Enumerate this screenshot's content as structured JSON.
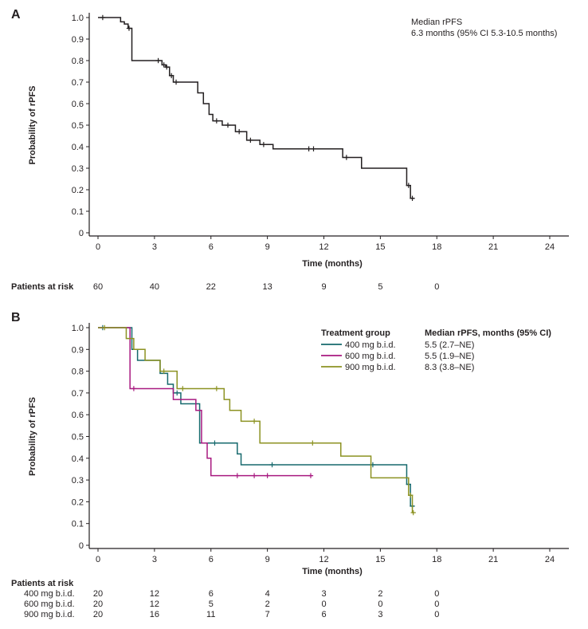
{
  "chart_data": [
    {
      "panel_label": "A",
      "type": "line",
      "subtype": "kaplan_meier_step",
      "xlabel": "Time (months)",
      "ylabel": "Probability of rPFS",
      "xlim": [
        0,
        24
      ],
      "ylim": [
        0,
        1
      ],
      "xticks": [
        0,
        3,
        6,
        9,
        12,
        15,
        18,
        21,
        24
      ],
      "yticks": [
        "1.0",
        "0.9",
        "0.8",
        "0.7",
        "0.6",
        "0.5",
        "0.4",
        "0.3",
        "0.2",
        "0.1",
        "0"
      ],
      "grid": false,
      "annotation": {
        "lines": [
          "Median rPFS",
          "6.3 months (95% CI 5.3-10.5 months)"
        ]
      },
      "series": [
        {
          "name": "All patients",
          "color": "#231f20",
          "steps": [
            [
              0,
              1.0
            ],
            [
              1.2,
              0.98
            ],
            [
              1.4,
              0.97
            ],
            [
              1.6,
              0.95
            ],
            [
              1.8,
              0.8
            ],
            [
              3.4,
              0.78
            ],
            [
              3.6,
              0.77
            ],
            [
              3.8,
              0.73
            ],
            [
              4.0,
              0.7
            ],
            [
              5.3,
              0.65
            ],
            [
              5.6,
              0.6
            ],
            [
              5.9,
              0.55
            ],
            [
              6.1,
              0.52
            ],
            [
              6.6,
              0.5
            ],
            [
              7.3,
              0.47
            ],
            [
              7.9,
              0.43
            ],
            [
              8.6,
              0.41
            ],
            [
              9.3,
              0.39
            ],
            [
              13.0,
              0.35
            ],
            [
              14.0,
              0.3
            ],
            [
              16.4,
              0.22
            ],
            [
              16.6,
              0.16
            ]
          ],
          "end_x": 16.8,
          "censors": [
            [
              0.25,
              1.0
            ],
            [
              1.65,
              0.95
            ],
            [
              3.2,
              0.8
            ],
            [
              3.5,
              0.78
            ],
            [
              3.65,
              0.77
            ],
            [
              3.9,
              0.73
            ],
            [
              4.15,
              0.7
            ],
            [
              6.3,
              0.52
            ],
            [
              6.9,
              0.5
            ],
            [
              7.5,
              0.47
            ],
            [
              8.1,
              0.43
            ],
            [
              8.8,
              0.41
            ],
            [
              11.2,
              0.39
            ],
            [
              11.45,
              0.39
            ],
            [
              13.2,
              0.35
            ],
            [
              16.5,
              0.22
            ],
            [
              16.7,
              0.16
            ]
          ]
        }
      ],
      "at_risk": {
        "header": "Patients at risk",
        "times": [
          0,
          3,
          6,
          9,
          12,
          15,
          18
        ],
        "rows": [
          {
            "label": "",
            "counts": [
              60,
              40,
              22,
              13,
              9,
              5,
              0
            ]
          }
        ]
      }
    },
    {
      "panel_label": "B",
      "type": "line",
      "subtype": "kaplan_meier_step",
      "xlabel": "Time (months)",
      "ylabel": "Probability of rPFS",
      "xlim": [
        0,
        24
      ],
      "ylim": [
        0,
        1
      ],
      "xticks": [
        0,
        3,
        6,
        9,
        12,
        15,
        18,
        21,
        24
      ],
      "yticks": [
        "1.0",
        "0.9",
        "0.8",
        "0.7",
        "0.6",
        "0.5",
        "0.4",
        "0.3",
        "0.2",
        "0.1",
        "0"
      ],
      "grid": false,
      "legend": {
        "group_header": "Treatment group",
        "value_header": "Median rPFS, months (95% CI)",
        "entries": [
          {
            "label": "400 mg b.i.d.",
            "value": "5.5 (2.7–NE)"
          },
          {
            "label": "600 mg b.i.d.",
            "value": "5.5 (1.9–NE)"
          },
          {
            "label": "900 mg b.i.d.",
            "value": "8.3 (3.8–NE)"
          }
        ]
      },
      "series": [
        {
          "name": "400 mg b.i.d.",
          "color": "#16696d",
          "steps": [
            [
              0,
              1.0
            ],
            [
              1.8,
              0.9
            ],
            [
              2.1,
              0.85
            ],
            [
              3.3,
              0.79
            ],
            [
              3.7,
              0.74
            ],
            [
              4.0,
              0.7
            ],
            [
              4.4,
              0.65
            ],
            [
              5.4,
              0.47
            ],
            [
              7.4,
              0.42
            ],
            [
              7.6,
              0.37
            ],
            [
              16.4,
              0.28
            ],
            [
              16.6,
              0.18
            ]
          ],
          "end_x": 16.8,
          "censors": [
            [
              0.25,
              1.0
            ],
            [
              4.2,
              0.7
            ],
            [
              6.2,
              0.47
            ],
            [
              9.25,
              0.37
            ],
            [
              14.6,
              0.37
            ],
            [
              16.5,
              0.28
            ],
            [
              16.7,
              0.18
            ]
          ]
        },
        {
          "name": "600 mg b.i.d.",
          "color": "#a81a80",
          "steps": [
            [
              0,
              1.0
            ],
            [
              1.7,
              0.72
            ],
            [
              4.0,
              0.67
            ],
            [
              5.2,
              0.62
            ],
            [
              5.5,
              0.47
            ],
            [
              5.8,
              0.4
            ],
            [
              6.0,
              0.32
            ]
          ],
          "end_x": 11.4,
          "censors": [
            [
              1.9,
              0.72
            ],
            [
              7.4,
              0.32
            ],
            [
              8.3,
              0.32
            ],
            [
              9.0,
              0.32
            ],
            [
              11.3,
              0.32
            ]
          ]
        },
        {
          "name": "900 mg b.i.d.",
          "color": "#8c9222",
          "steps": [
            [
              0,
              1.0
            ],
            [
              1.5,
              0.95
            ],
            [
              1.9,
              0.9
            ],
            [
              2.5,
              0.85
            ],
            [
              3.3,
              0.8
            ],
            [
              4.2,
              0.72
            ],
            [
              6.7,
              0.67
            ],
            [
              7.0,
              0.62
            ],
            [
              7.6,
              0.57
            ],
            [
              8.6,
              0.47
            ],
            [
              12.9,
              0.41
            ],
            [
              14.5,
              0.31
            ],
            [
              16.5,
              0.23
            ],
            [
              16.7,
              0.15
            ]
          ],
          "end_x": 16.8,
          "censors": [
            [
              0.35,
              1.0
            ],
            [
              3.5,
              0.8
            ],
            [
              4.5,
              0.72
            ],
            [
              6.3,
              0.72
            ],
            [
              8.3,
              0.57
            ],
            [
              11.4,
              0.47
            ],
            [
              16.6,
              0.23
            ],
            [
              16.75,
              0.15
            ]
          ]
        }
      ],
      "at_risk": {
        "header": "Patients at risk",
        "times": [
          0,
          3,
          6,
          9,
          12,
          15,
          18
        ],
        "rows": [
          {
            "label": "400 mg b.i.d.",
            "counts": [
              20,
              12,
              6,
              4,
              3,
              2,
              0
            ]
          },
          {
            "label": "600 mg b.i.d.",
            "counts": [
              20,
              12,
              5,
              2,
              0,
              0,
              0
            ]
          },
          {
            "label": "900 mg b.i.d.",
            "counts": [
              20,
              16,
              11,
              7,
              6,
              3,
              0
            ]
          }
        ]
      }
    }
  ]
}
